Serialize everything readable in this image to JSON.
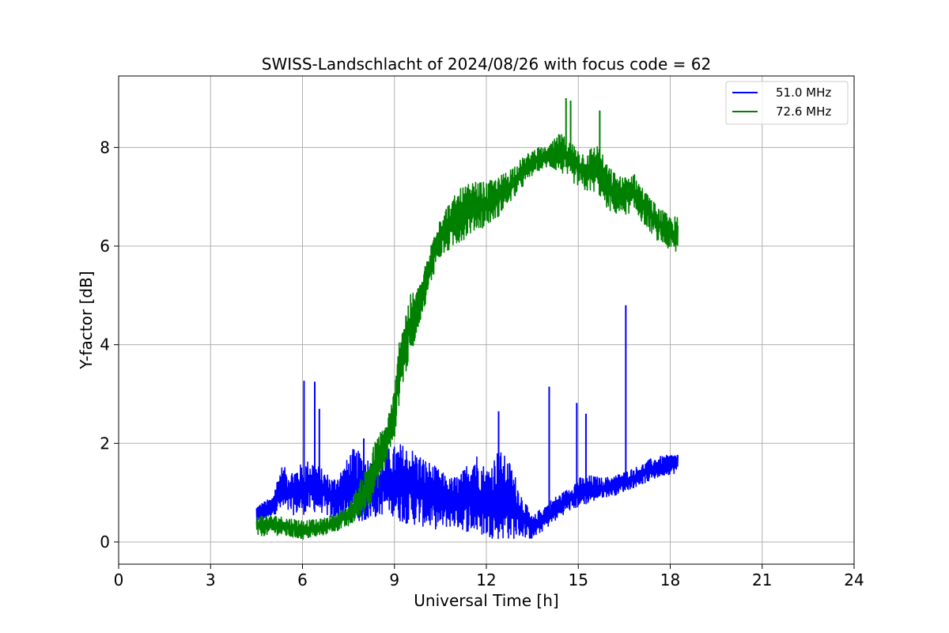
{
  "chart_data": {
    "type": "line",
    "title": "SWISS-Landschlacht of 2024/08/26 with focus code = 62",
    "xlabel": "Universal Time [h]",
    "ylabel": "Y-factor [dB]",
    "xlim": [
      0,
      24
    ],
    "ylim": [
      -0.45,
      9.45
    ],
    "xticks": [
      0,
      3,
      6,
      9,
      12,
      15,
      18,
      21,
      24
    ],
    "yticks": [
      0,
      2,
      4,
      6,
      8
    ],
    "grid": true,
    "legend_position": "top-right",
    "series": [
      {
        "name": "51.0 MHz",
        "color": "#0000ff",
        "envelope": [
          [
            4.5,
            0.3,
            0.75
          ],
          [
            5.0,
            0.55,
            0.9
          ],
          [
            5.3,
            0.6,
            1.55
          ],
          [
            5.6,
            0.55,
            1.45
          ],
          [
            6.0,
            0.55,
            1.6
          ],
          [
            6.3,
            0.6,
            1.7
          ],
          [
            6.6,
            0.6,
            1.5
          ],
          [
            7.0,
            0.45,
            1.3
          ],
          [
            7.4,
            0.45,
            1.6
          ],
          [
            7.6,
            0.4,
            1.9
          ],
          [
            8.0,
            0.4,
            1.8
          ],
          [
            8.4,
            0.5,
            1.6
          ],
          [
            8.8,
            0.6,
            1.9
          ],
          [
            9.2,
            0.4,
            2.0
          ],
          [
            9.6,
            0.35,
            1.9
          ],
          [
            10.0,
            0.3,
            1.7
          ],
          [
            10.4,
            0.25,
            1.5
          ],
          [
            10.8,
            0.3,
            1.3
          ],
          [
            11.2,
            0.25,
            1.4
          ],
          [
            11.6,
            0.15,
            1.9
          ],
          [
            12.0,
            0.1,
            1.5
          ],
          [
            12.4,
            0.05,
            1.9
          ],
          [
            12.8,
            0.05,
            1.6
          ],
          [
            13.2,
            0.1,
            0.9
          ],
          [
            13.5,
            0.05,
            0.5
          ],
          [
            13.8,
            0.2,
            0.7
          ],
          [
            14.2,
            0.4,
            0.9
          ],
          [
            14.6,
            0.6,
            1.05
          ],
          [
            15.0,
            0.7,
            1.3
          ],
          [
            15.4,
            0.8,
            1.35
          ],
          [
            15.8,
            0.9,
            1.3
          ],
          [
            16.2,
            0.95,
            1.35
          ],
          [
            16.6,
            1.05,
            1.45
          ],
          [
            17.0,
            1.15,
            1.55
          ],
          [
            17.4,
            1.25,
            1.7
          ],
          [
            17.8,
            1.35,
            1.75
          ],
          [
            18.25,
            1.4,
            1.8
          ]
        ],
        "spikes": [
          [
            6.05,
            3.27
          ],
          [
            6.4,
            3.25
          ],
          [
            6.55,
            2.7
          ],
          [
            8.0,
            2.1
          ],
          [
            12.4,
            2.65
          ],
          [
            14.05,
            3.15
          ],
          [
            14.95,
            2.82
          ],
          [
            15.25,
            2.6
          ],
          [
            16.55,
            4.8
          ]
        ]
      },
      {
        "name": "72.6 MHz",
        "color": "#008000",
        "envelope": [
          [
            4.5,
            0.1,
            0.55
          ],
          [
            5.0,
            0.15,
            0.55
          ],
          [
            5.5,
            0.1,
            0.5
          ],
          [
            6.0,
            0.05,
            0.45
          ],
          [
            6.5,
            0.1,
            0.45
          ],
          [
            7.0,
            0.2,
            0.55
          ],
          [
            7.5,
            0.3,
            0.75
          ],
          [
            8.0,
            0.55,
            1.4
          ],
          [
            8.4,
            1.0,
            2.1
          ],
          [
            8.7,
            1.5,
            2.4
          ],
          [
            9.0,
            2.1,
            3.1
          ],
          [
            9.2,
            3.0,
            4.4
          ],
          [
            9.5,
            3.7,
            5.0
          ],
          [
            9.8,
            4.4,
            5.2
          ],
          [
            10.1,
            5.0,
            5.8
          ],
          [
            10.4,
            5.7,
            6.6
          ],
          [
            10.8,
            5.9,
            6.9
          ],
          [
            11.2,
            6.1,
            7.2
          ],
          [
            11.6,
            6.3,
            7.3
          ],
          [
            12.0,
            6.4,
            7.3
          ],
          [
            12.4,
            6.6,
            7.4
          ],
          [
            12.8,
            6.9,
            7.6
          ],
          [
            13.2,
            7.2,
            7.8
          ],
          [
            13.6,
            7.5,
            8.0
          ],
          [
            14.0,
            7.6,
            8.0
          ],
          [
            14.4,
            7.5,
            8.3
          ],
          [
            14.8,
            7.3,
            8.1
          ],
          [
            15.2,
            7.1,
            7.9
          ],
          [
            15.6,
            7.1,
            8.1
          ],
          [
            16.0,
            6.7,
            7.6
          ],
          [
            16.4,
            6.6,
            7.4
          ],
          [
            16.8,
            6.7,
            7.5
          ],
          [
            17.2,
            6.4,
            7.1
          ],
          [
            17.6,
            6.1,
            6.8
          ],
          [
            18.0,
            5.9,
            6.6
          ],
          [
            18.25,
            5.8,
            6.6
          ]
        ],
        "spikes": [
          [
            14.6,
            9.0
          ],
          [
            14.75,
            8.95
          ],
          [
            15.7,
            8.75
          ]
        ]
      }
    ]
  }
}
